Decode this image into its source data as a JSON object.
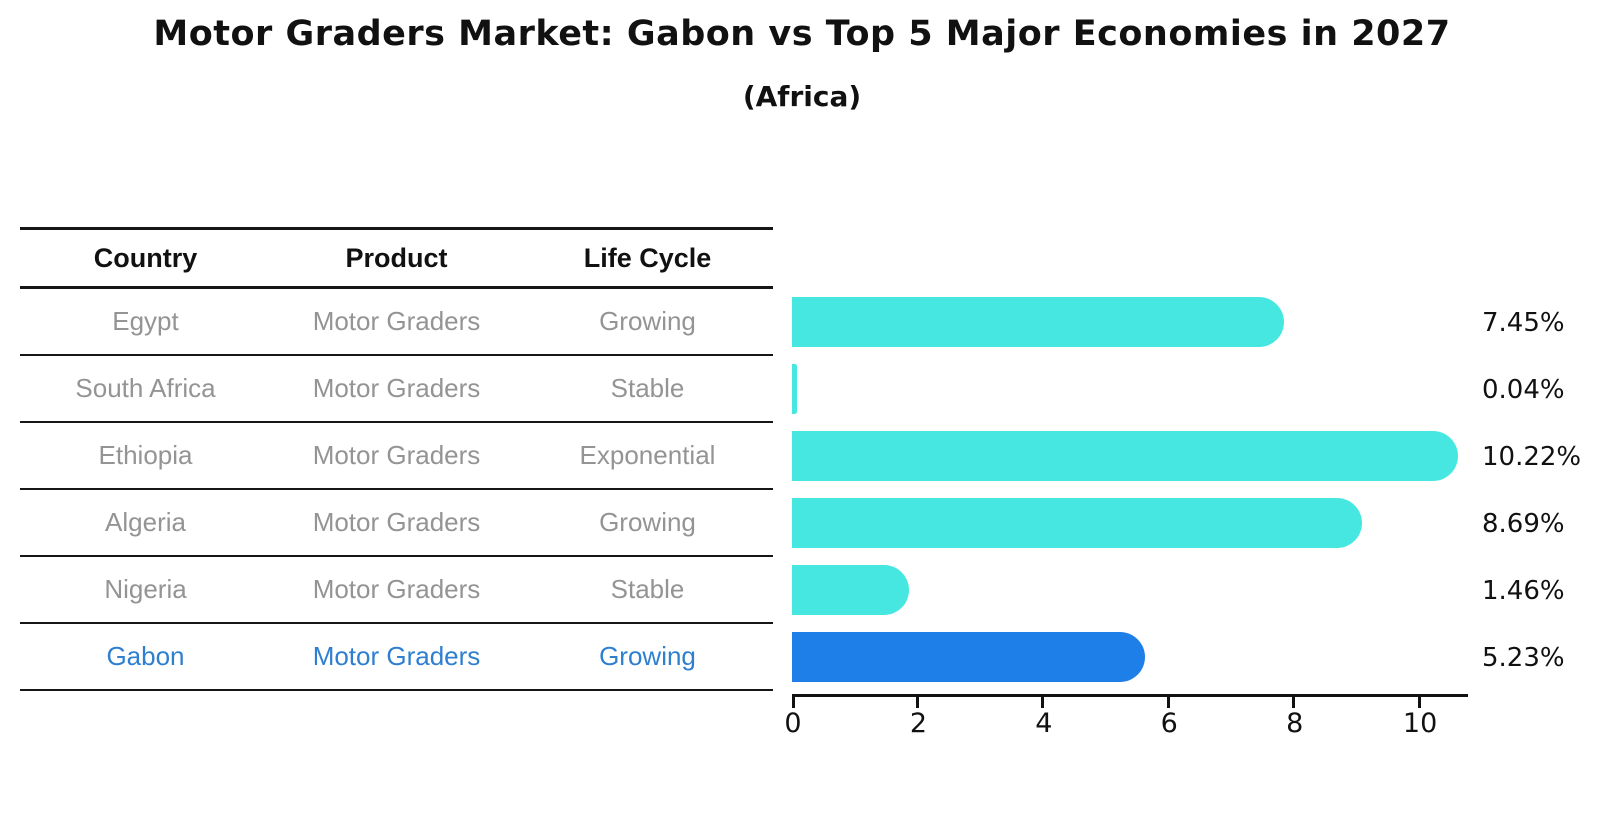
{
  "title": "Motor Graders Market: Gabon vs Top 5 Major Economies in 2027",
  "subtitle": "(Africa)",
  "table": {
    "columns": [
      "Country",
      "Product",
      "Life Cycle"
    ],
    "rows": [
      {
        "country": "Egypt",
        "product": "Motor Graders",
        "life_cycle": "Growing",
        "highlight": false
      },
      {
        "country": "South Africa",
        "product": "Motor Graders",
        "life_cycle": "Stable",
        "highlight": false
      },
      {
        "country": "Ethiopia",
        "product": "Motor Graders",
        "life_cycle": "Exponential",
        "highlight": false
      },
      {
        "country": "Algeria",
        "product": "Motor Graders",
        "life_cycle": "Growing",
        "highlight": false
      },
      {
        "country": "Nigeria",
        "product": "Motor Graders",
        "life_cycle": "Stable",
        "highlight": false
      },
      {
        "country": "Gabon",
        "product": "Motor Graders",
        "life_cycle": "Growing",
        "highlight": true
      }
    ]
  },
  "chart_data": {
    "type": "bar",
    "orientation": "horizontal",
    "title": "Motor Graders Market: Gabon vs Top 5 Major Economies in 2027",
    "subtitle": "(Africa)",
    "categories": [
      "Egypt",
      "South Africa",
      "Ethiopia",
      "Algeria",
      "Nigeria",
      "Gabon"
    ],
    "values": [
      7.45,
      0.04,
      10.22,
      8.69,
      1.46,
      5.23
    ],
    "value_labels": [
      "7.45%",
      "0.04%",
      "10.22%",
      "8.69%",
      "1.46%",
      "5.23%"
    ],
    "highlight_index": 5,
    "xlim": [
      0,
      10.78
    ],
    "x_ticks": [
      0,
      2,
      4,
      6,
      8,
      10
    ],
    "x_tick_labels": [
      "0",
      "2",
      "4",
      "6",
      "8",
      "10"
    ],
    "grid": false,
    "legend": false,
    "bar_color": "#45E7E0",
    "highlight_bar_color": "#1F7FE8",
    "highlight_text_color": "#2E7FD0",
    "row_text_color": "#949494",
    "label_color": "#111111"
  }
}
